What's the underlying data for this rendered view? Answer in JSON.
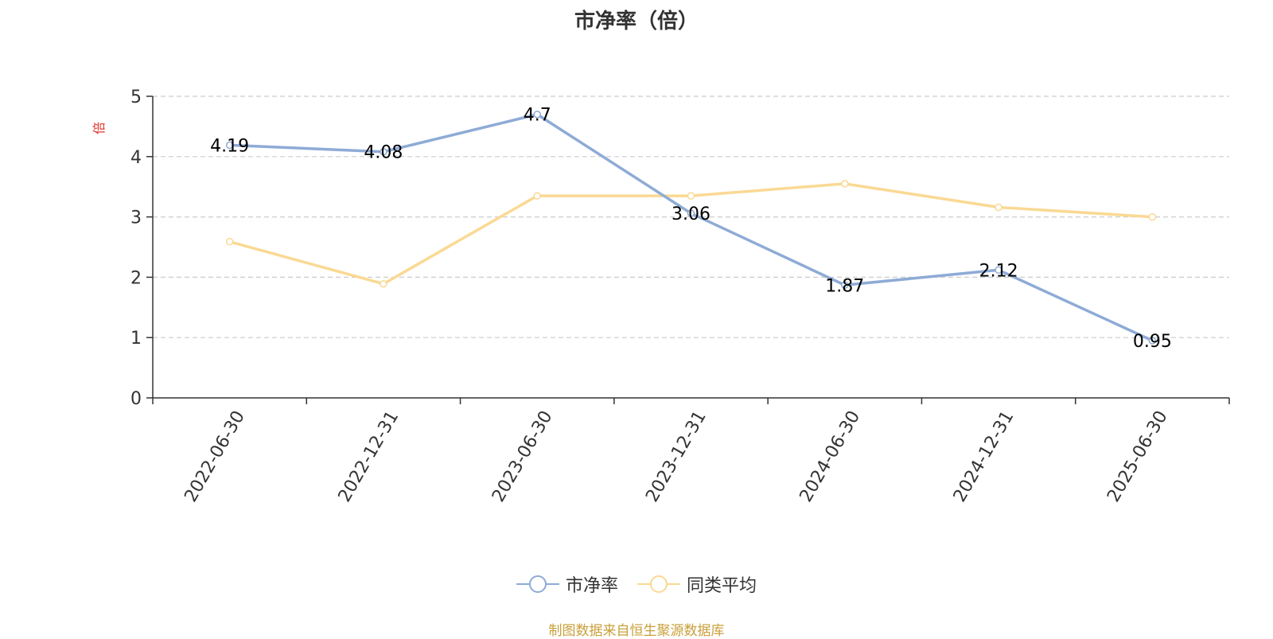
{
  "chart_data": {
    "type": "line",
    "title": "市净率（倍）",
    "ylabel": "倍",
    "xlabel": "",
    "ylim": [
      0,
      5
    ],
    "yticks": [
      0,
      1,
      2,
      3,
      4,
      5
    ],
    "grid": true,
    "legend_position": "bottom",
    "categories": [
      "2022-06-30",
      "2022-12-31",
      "2023-06-30",
      "2023-12-31",
      "2024-06-30",
      "2024-12-31",
      "2025-06-30"
    ],
    "series": [
      {
        "name": "市净率",
        "color": "#8eabd6",
        "values": [
          4.19,
          4.08,
          4.7,
          3.06,
          1.87,
          2.12,
          0.95
        ],
        "data_labels": [
          "4.19",
          "4.08",
          "4.7",
          "3.06",
          "1.87",
          "2.12",
          "0.95"
        ]
      },
      {
        "name": "同类平均",
        "color": "#fad994",
        "values": [
          2.59,
          1.89,
          3.35,
          3.35,
          3.55,
          3.16,
          3.0
        ],
        "data_labels": []
      }
    ]
  },
  "footer": {
    "source": "制图数据来自恒生聚源数据库"
  },
  "colors": {
    "ylabel": "#e0342c",
    "axis": "#333333",
    "grid": "#cccccc"
  }
}
